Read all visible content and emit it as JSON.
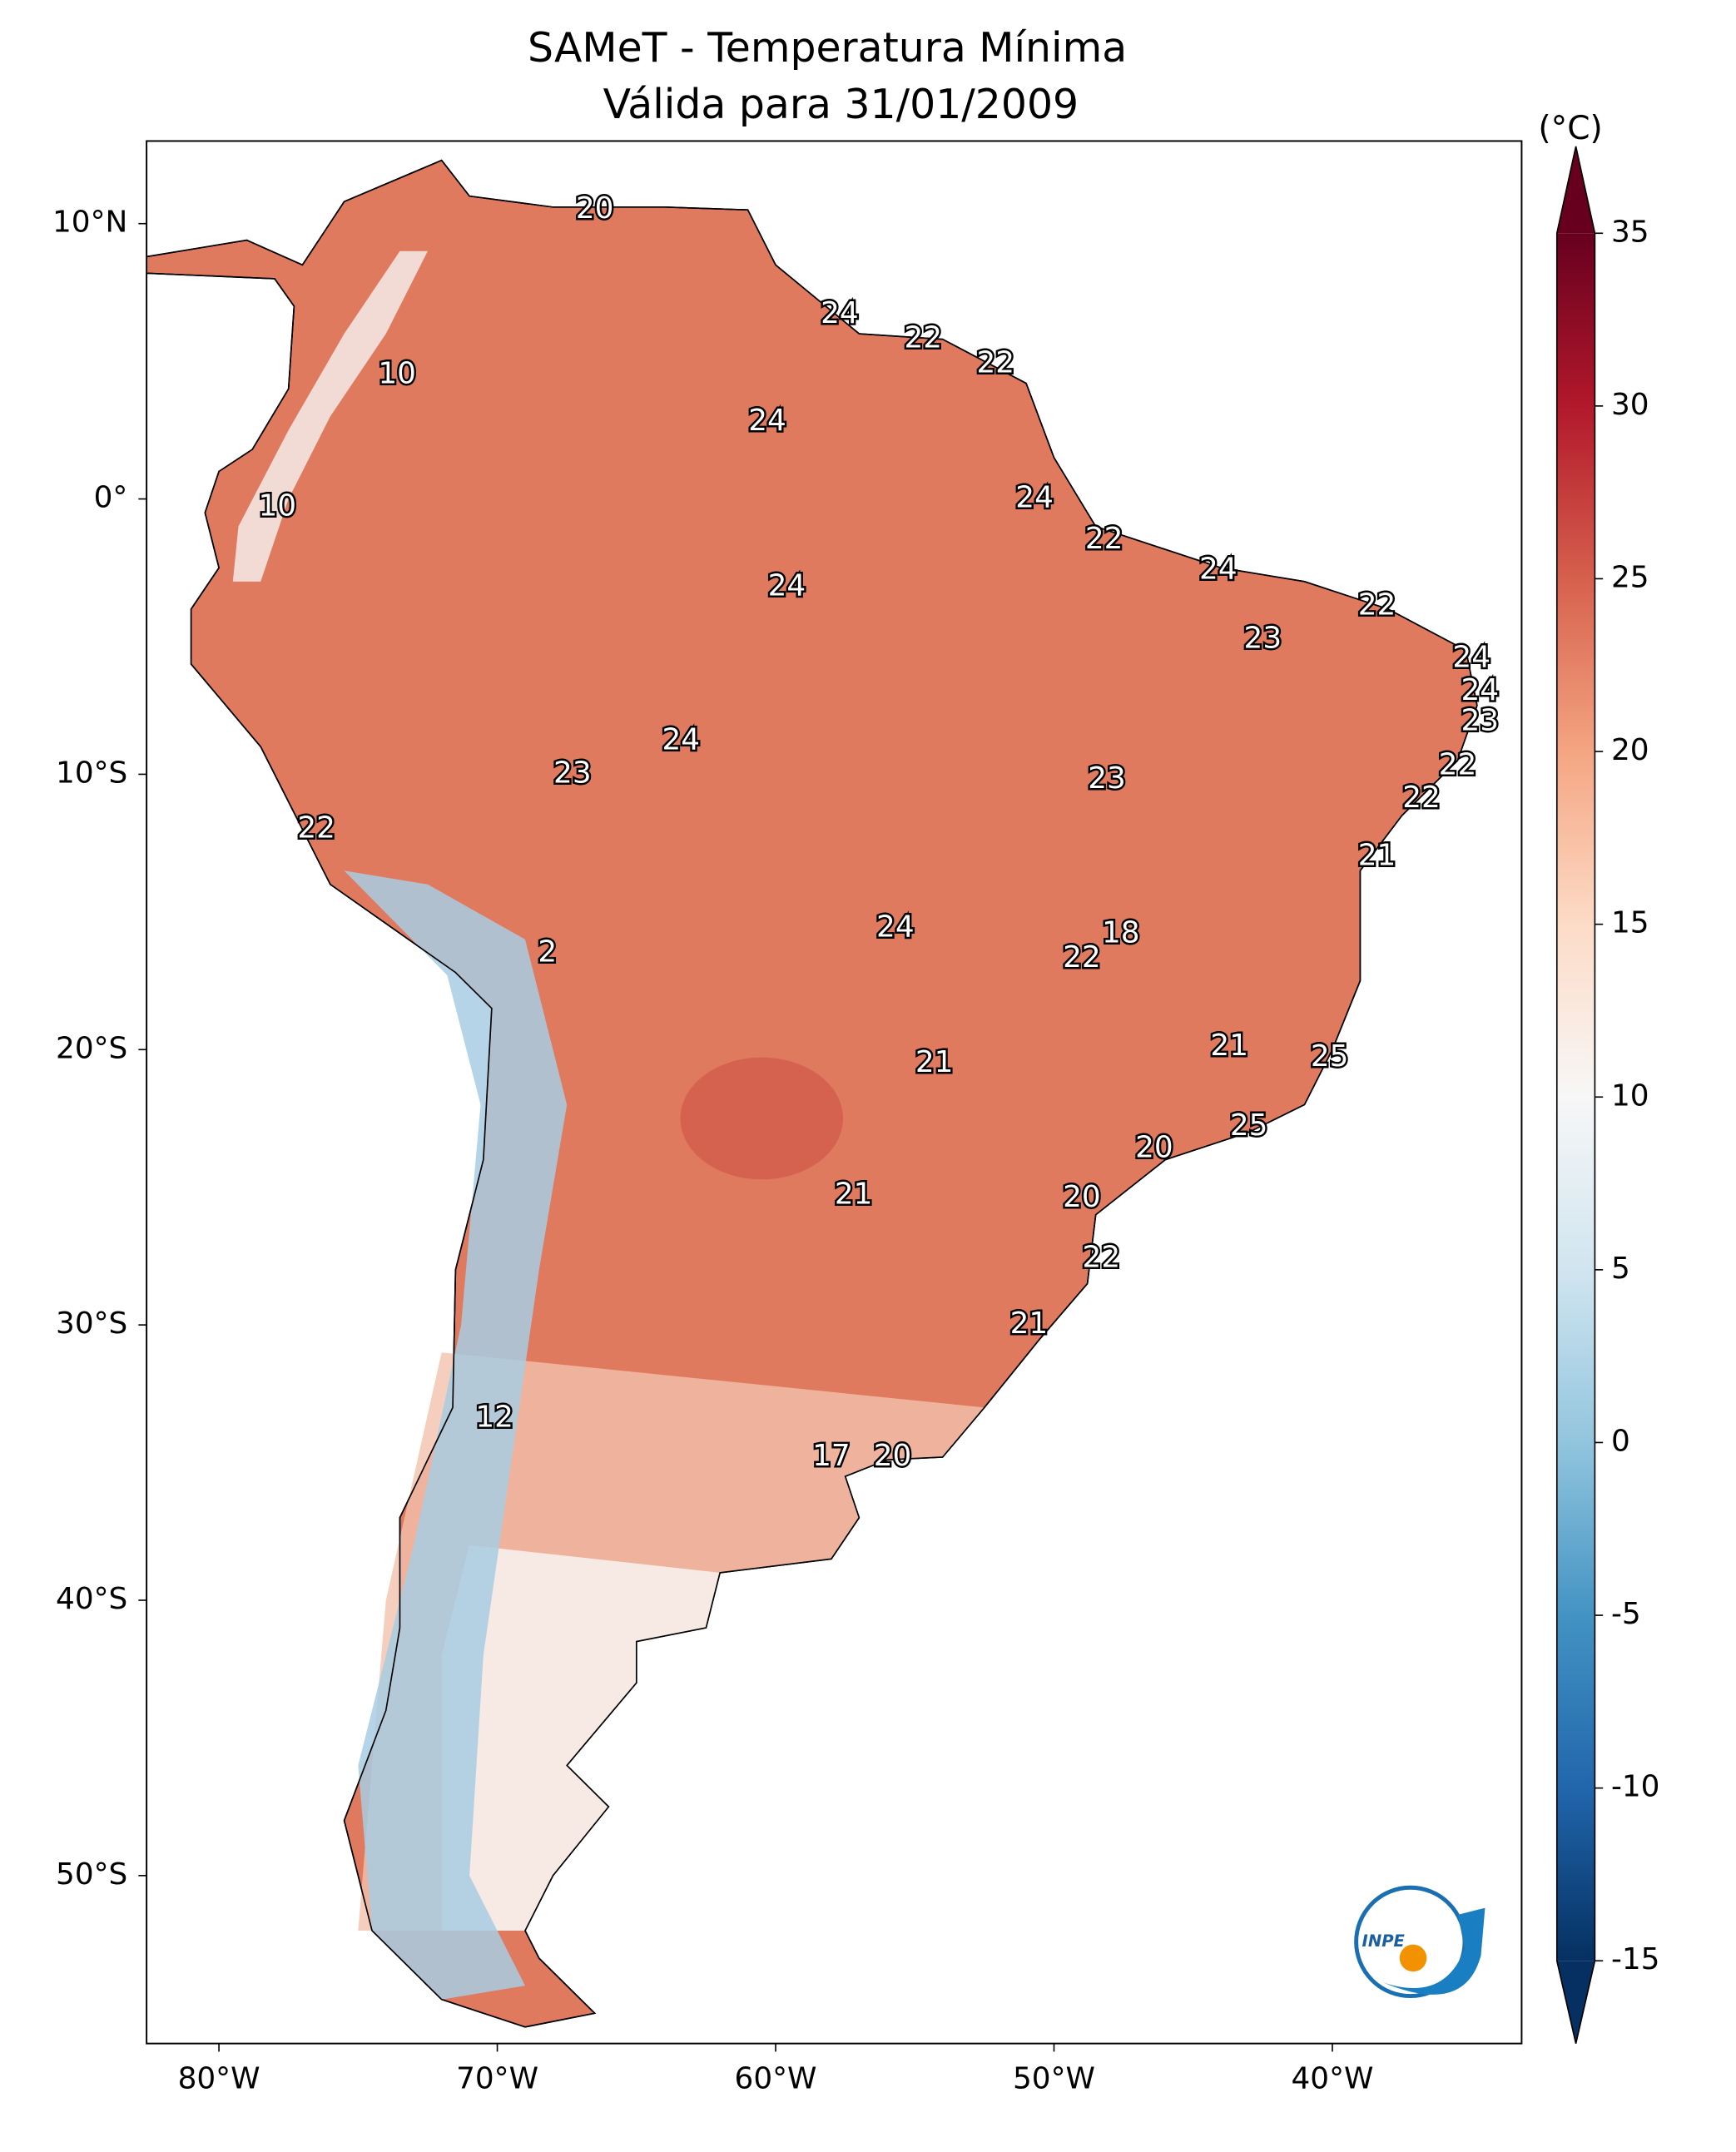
{
  "chart_data": {
    "type": "map",
    "title": "SAMeT - Temperatura Mínima",
    "subtitle": "Válida para 31/01/2009",
    "xlim": [
      -82.6,
      -33.2
    ],
    "ylim": [
      -56.1,
      13
    ],
    "xticks": [
      {
        "value": -80,
        "label": "80°W"
      },
      {
        "value": -70,
        "label": "70°W"
      },
      {
        "value": -60,
        "label": "60°W"
      },
      {
        "value": -50,
        "label": "50°W"
      },
      {
        "value": -40,
        "label": "40°W"
      }
    ],
    "yticks": [
      {
        "value": 10,
        "label": "10°N"
      },
      {
        "value": 0,
        "label": "0°"
      },
      {
        "value": -10,
        "label": "10°S"
      },
      {
        "value": -20,
        "label": "20°S"
      },
      {
        "value": -30,
        "label": "30°S"
      },
      {
        "value": -40,
        "label": "40°S"
      },
      {
        "value": -50,
        "label": "50°S"
      }
    ],
    "colorbar": {
      "unit": "(°C)",
      "lim": [
        -15,
        35
      ],
      "ticks": [
        35,
        30,
        25,
        20,
        15,
        10,
        5,
        0,
        -5,
        -10,
        -15
      ],
      "colors": [
        "#053061",
        "#2166ac",
        "#4393c3",
        "#92c5de",
        "#d1e5f0",
        "#f7f7f7",
        "#fddbc7",
        "#f4a582",
        "#d6604d",
        "#b2182b",
        "#67001f"
      ]
    },
    "labels": [
      {
        "lon": -66.5,
        "lat": 10.5,
        "value": 20
      },
      {
        "lon": -57.7,
        "lat": 6.7,
        "value": 24
      },
      {
        "lon": -54.7,
        "lat": 5.8,
        "value": 22
      },
      {
        "lon": -52.1,
        "lat": 4.9,
        "value": 22
      },
      {
        "lon": -73.6,
        "lat": 4.5,
        "value": 10
      },
      {
        "lon": -60.3,
        "lat": 2.8,
        "value": 24
      },
      {
        "lon": -50.7,
        "lat": 0.0,
        "value": 24
      },
      {
        "lon": -77.9,
        "lat": -0.3,
        "value": 10
      },
      {
        "lon": -48.2,
        "lat": -1.5,
        "value": 22
      },
      {
        "lon": -44.1,
        "lat": -2.6,
        "value": 24
      },
      {
        "lon": -59.6,
        "lat": -3.2,
        "value": 24
      },
      {
        "lon": -38.4,
        "lat": -3.9,
        "value": 22
      },
      {
        "lon": -42.5,
        "lat": -5.1,
        "value": 23
      },
      {
        "lon": -35.0,
        "lat": -5.8,
        "value": 24
      },
      {
        "lon": -34.7,
        "lat": -7.0,
        "value": 24
      },
      {
        "lon": -34.7,
        "lat": -8.1,
        "value": 23
      },
      {
        "lon": -63.4,
        "lat": -8.8,
        "value": 24
      },
      {
        "lon": -35.5,
        "lat": -9.7,
        "value": 22
      },
      {
        "lon": -67.3,
        "lat": -10.0,
        "value": 23
      },
      {
        "lon": -48.1,
        "lat": -10.2,
        "value": 23
      },
      {
        "lon": -36.8,
        "lat": -10.9,
        "value": 22
      },
      {
        "lon": -76.5,
        "lat": -12.0,
        "value": 22
      },
      {
        "lon": -38.4,
        "lat": -13.0,
        "value": 21
      },
      {
        "lon": -55.7,
        "lat": -15.6,
        "value": 24
      },
      {
        "lon": -47.6,
        "lat": -15.8,
        "value": 18
      },
      {
        "lon": -49.0,
        "lat": -16.7,
        "value": 22
      },
      {
        "lon": -68.2,
        "lat": -16.5,
        "value": 2
      },
      {
        "lon": -43.7,
        "lat": -19.9,
        "value": 21
      },
      {
        "lon": -40.1,
        "lat": -20.3,
        "value": 25
      },
      {
        "lon": -54.3,
        "lat": -20.5,
        "value": 21
      },
      {
        "lon": -43.0,
        "lat": -22.8,
        "value": 25
      },
      {
        "lon": -46.4,
        "lat": -23.6,
        "value": 20
      },
      {
        "lon": -57.2,
        "lat": -25.3,
        "value": 21
      },
      {
        "lon": -49.0,
        "lat": -25.4,
        "value": 20
      },
      {
        "lon": -48.3,
        "lat": -27.6,
        "value": 22
      },
      {
        "lon": -50.9,
        "lat": -30.0,
        "value": 21
      },
      {
        "lon": -70.1,
        "lat": -33.4,
        "value": 12
      },
      {
        "lon": -58.0,
        "lat": -34.8,
        "value": 17
      },
      {
        "lon": -55.8,
        "lat": -34.8,
        "value": 20
      }
    ],
    "logo_text": "INPE"
  }
}
